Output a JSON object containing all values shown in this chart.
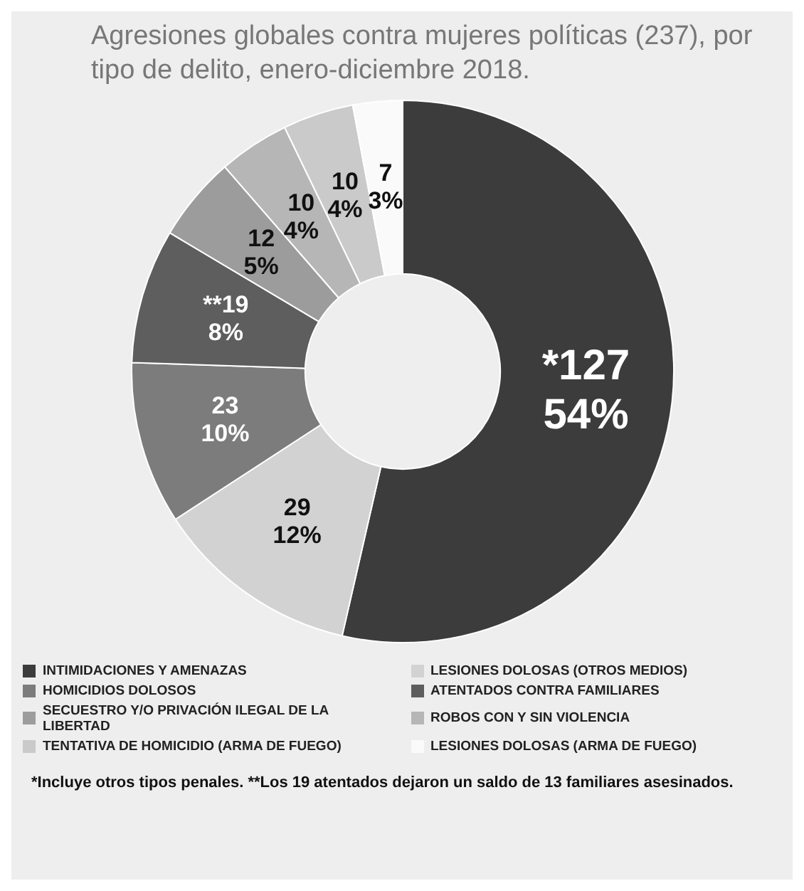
{
  "chart_data": {
    "type": "donut",
    "title": "Agresiones globales contra mujeres políticas (237), por tipo de delito,  enero-diciembre 2018.",
    "categories": [
      "INTIMIDACIONES Y AMENAZAS",
      "LESIONES DOLOSAS (OTROS MEDIOS)",
      "HOMICIDIOS DOLOSOS",
      "ATENTADOS CONTRA FAMILIARES",
      "SECUESTRO Y/O PRIVACIÓN ILEGAL DE LA LIBERTAD",
      "ROBOS CON Y SIN VIOLENCIA",
      "TENTATIVA DE HOMICIDIO (ARMA DE FUEGO)",
      "LESIONES DOLOSAS (ARMA DE FUEGO)"
    ],
    "values": [
      127,
      29,
      23,
      19,
      12,
      10,
      10,
      7
    ],
    "value_labels": [
      "*127\n54%",
      "29\n12%",
      "23\n10%",
      "**19\n8%",
      "12\n5%",
      "10\n4%",
      "10\n4%",
      "7\n3%"
    ],
    "colors": [
      "#3c3c3c",
      "#d2d2d2",
      "#7c7c7c",
      "#5e5e5e",
      "#9c9c9c",
      "#b6b6b6",
      "#cacaca",
      "#fafafa"
    ],
    "legend": "bottom",
    "annotations": [
      "*Incluye  otros tipos penales. **Los 19 atentados dejaron un saldo de 13 familiares asesinados."
    ]
  }
}
